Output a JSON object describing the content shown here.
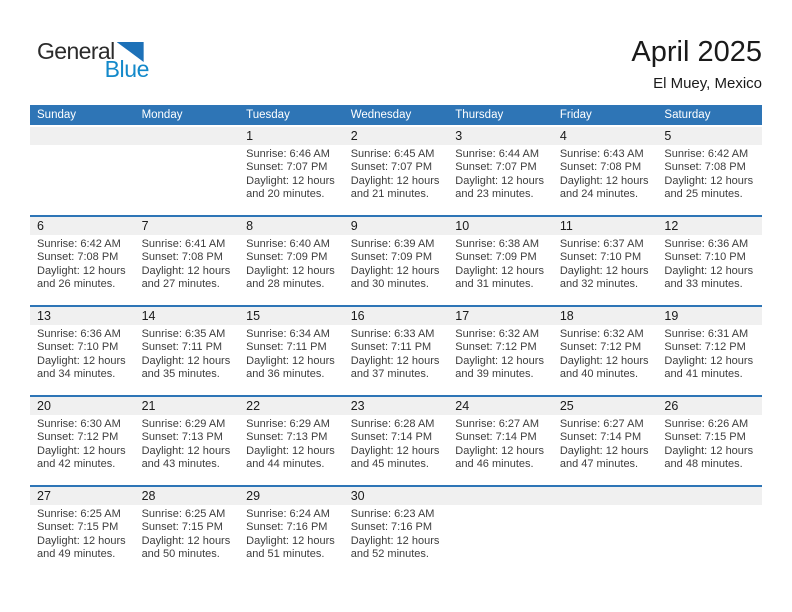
{
  "logo": {
    "general": "General",
    "blue": "Blue"
  },
  "header": {
    "title": "April 2025",
    "subtitle": "El Muey, Mexico"
  },
  "weekdays": [
    "Sunday",
    "Monday",
    "Tuesday",
    "Wednesday",
    "Thursday",
    "Friday",
    "Saturday"
  ],
  "labels": {
    "sunrise": "Sunrise:",
    "sunset": "Sunset:",
    "daylight": "Daylight:"
  },
  "colors": {
    "header_blue": "#2E75B6",
    "line_blue": "#2E75B6",
    "band_gray": "#F0F0F0",
    "logo_blue": "#1389CA",
    "triangle_blue": "#1D71B8",
    "text_dark": "#1A1A1A",
    "text_detail": "#3D3D3D"
  },
  "weeks": [
    [
      null,
      null,
      {
        "day": "1",
        "sunrise": "6:46 AM",
        "sunset": "7:07 PM",
        "daylight": "12 hours and 20 minutes."
      },
      {
        "day": "2",
        "sunrise": "6:45 AM",
        "sunset": "7:07 PM",
        "daylight": "12 hours and 21 minutes."
      },
      {
        "day": "3",
        "sunrise": "6:44 AM",
        "sunset": "7:07 PM",
        "daylight": "12 hours and 23 minutes."
      },
      {
        "day": "4",
        "sunrise": "6:43 AM",
        "sunset": "7:08 PM",
        "daylight": "12 hours and 24 minutes."
      },
      {
        "day": "5",
        "sunrise": "6:42 AM",
        "sunset": "7:08 PM",
        "daylight": "12 hours and 25 minutes."
      }
    ],
    [
      {
        "day": "6",
        "sunrise": "6:42 AM",
        "sunset": "7:08 PM",
        "daylight": "12 hours and 26 minutes."
      },
      {
        "day": "7",
        "sunrise": "6:41 AM",
        "sunset": "7:08 PM",
        "daylight": "12 hours and 27 minutes."
      },
      {
        "day": "8",
        "sunrise": "6:40 AM",
        "sunset": "7:09 PM",
        "daylight": "12 hours and 28 minutes."
      },
      {
        "day": "9",
        "sunrise": "6:39 AM",
        "sunset": "7:09 PM",
        "daylight": "12 hours and 30 minutes."
      },
      {
        "day": "10",
        "sunrise": "6:38 AM",
        "sunset": "7:09 PM",
        "daylight": "12 hours and 31 minutes."
      },
      {
        "day": "11",
        "sunrise": "6:37 AM",
        "sunset": "7:10 PM",
        "daylight": "12 hours and 32 minutes."
      },
      {
        "day": "12",
        "sunrise": "6:36 AM",
        "sunset": "7:10 PM",
        "daylight": "12 hours and 33 minutes."
      }
    ],
    [
      {
        "day": "13",
        "sunrise": "6:36 AM",
        "sunset": "7:10 PM",
        "daylight": "12 hours and 34 minutes."
      },
      {
        "day": "14",
        "sunrise": "6:35 AM",
        "sunset": "7:11 PM",
        "daylight": "12 hours and 35 minutes."
      },
      {
        "day": "15",
        "sunrise": "6:34 AM",
        "sunset": "7:11 PM",
        "daylight": "12 hours and 36 minutes."
      },
      {
        "day": "16",
        "sunrise": "6:33 AM",
        "sunset": "7:11 PM",
        "daylight": "12 hours and 37 minutes."
      },
      {
        "day": "17",
        "sunrise": "6:32 AM",
        "sunset": "7:12 PM",
        "daylight": "12 hours and 39 minutes."
      },
      {
        "day": "18",
        "sunrise": "6:32 AM",
        "sunset": "7:12 PM",
        "daylight": "12 hours and 40 minutes."
      },
      {
        "day": "19",
        "sunrise": "6:31 AM",
        "sunset": "7:12 PM",
        "daylight": "12 hours and 41 minutes."
      }
    ],
    [
      {
        "day": "20",
        "sunrise": "6:30 AM",
        "sunset": "7:12 PM",
        "daylight": "12 hours and 42 minutes."
      },
      {
        "day": "21",
        "sunrise": "6:29 AM",
        "sunset": "7:13 PM",
        "daylight": "12 hours and 43 minutes."
      },
      {
        "day": "22",
        "sunrise": "6:29 AM",
        "sunset": "7:13 PM",
        "daylight": "12 hours and 44 minutes."
      },
      {
        "day": "23",
        "sunrise": "6:28 AM",
        "sunset": "7:14 PM",
        "daylight": "12 hours and 45 minutes."
      },
      {
        "day": "24",
        "sunrise": "6:27 AM",
        "sunset": "7:14 PM",
        "daylight": "12 hours and 46 minutes."
      },
      {
        "day": "25",
        "sunrise": "6:27 AM",
        "sunset": "7:14 PM",
        "daylight": "12 hours and 47 minutes."
      },
      {
        "day": "26",
        "sunrise": "6:26 AM",
        "sunset": "7:15 PM",
        "daylight": "12 hours and 48 minutes."
      }
    ],
    [
      {
        "day": "27",
        "sunrise": "6:25 AM",
        "sunset": "7:15 PM",
        "daylight": "12 hours and 49 minutes."
      },
      {
        "day": "28",
        "sunrise": "6:25 AM",
        "sunset": "7:15 PM",
        "daylight": "12 hours and 50 minutes."
      },
      {
        "day": "29",
        "sunrise": "6:24 AM",
        "sunset": "7:16 PM",
        "daylight": "12 hours and 51 minutes."
      },
      {
        "day": "30",
        "sunrise": "6:23 AM",
        "sunset": "7:16 PM",
        "daylight": "12 hours and 52 minutes."
      },
      null,
      null,
      null
    ]
  ]
}
